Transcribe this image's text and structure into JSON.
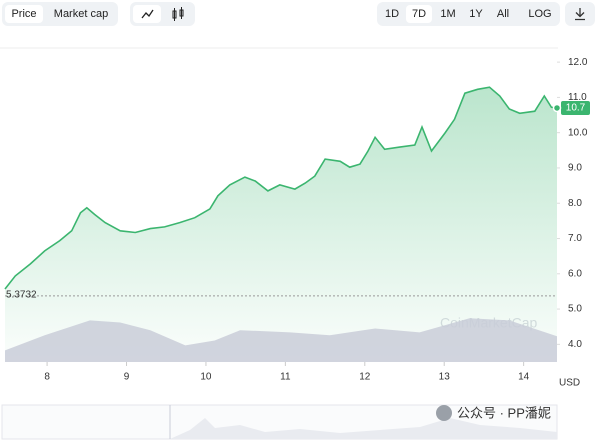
{
  "toolbar": {
    "tabs": [
      "Price",
      "Market cap"
    ],
    "ranges": [
      "1D",
      "7D",
      "1M",
      "1Y",
      "All"
    ],
    "log_label": "LOG"
  },
  "chart_data": {
    "type": "line",
    "series": [
      {
        "color": "#3bb56f",
        "x": [
          7.47,
          7.6,
          7.79,
          7.97,
          8.16,
          8.31,
          8.42,
          8.5,
          8.6,
          8.73,
          8.92,
          9.11,
          9.3,
          9.48,
          9.67,
          9.86,
          10.05,
          10.15,
          10.3,
          10.49,
          10.62,
          10.78,
          10.93,
          11.12,
          11.25,
          11.37,
          11.5,
          11.69,
          11.81,
          11.94,
          12.04,
          12.13,
          12.25,
          12.44,
          12.63,
          12.72,
          12.84,
          13.01,
          13.13,
          13.26,
          13.42,
          13.57,
          13.7,
          13.82,
          13.95,
          14.14,
          14.26,
          14.35,
          14.42
        ],
        "values": [
          5.57,
          5.94,
          6.28,
          6.65,
          6.94,
          7.22,
          7.73,
          7.87,
          7.68,
          7.45,
          7.22,
          7.17,
          7.28,
          7.33,
          7.45,
          7.59,
          7.84,
          8.21,
          8.52,
          8.74,
          8.63,
          8.35,
          8.52,
          8.4,
          8.57,
          8.77,
          9.25,
          9.19,
          9.02,
          9.11,
          9.48,
          9.87,
          9.53,
          9.59,
          9.65,
          10.16,
          9.48,
          9.99,
          10.38,
          11.12,
          11.23,
          11.29,
          11.04,
          10.67,
          10.55,
          10.61,
          11.04,
          10.72,
          10.7
        ]
      },
      {
        "color": "#c9ccd8",
        "x": [
          7.47,
          7.97,
          8.54,
          8.92,
          9.3,
          9.74,
          10.11,
          10.43,
          11.06,
          11.56,
          12.13,
          12.69,
          13.32,
          13.82,
          14.42
        ],
        "values": [
          3.83,
          4.26,
          4.68,
          4.62,
          4.4,
          3.97,
          4.11,
          4.4,
          4.34,
          4.26,
          4.45,
          4.34,
          4.74,
          4.68,
          4.23
        ]
      }
    ],
    "xlim": [
      7.47,
      14.42
    ],
    "xticks": [
      8,
      9,
      10,
      11,
      12,
      13,
      14
    ],
    "ylim": [
      3.5,
      12.4
    ],
    "yticks": [
      {
        "value": 4,
        "label": "4.0"
      },
      {
        "value": 5,
        "label": "5.0"
      },
      {
        "value": 6,
        "label": "6.0"
      },
      {
        "value": 7,
        "label": "7.0"
      },
      {
        "value": 8,
        "label": "8.0"
      },
      {
        "value": 9,
        "label": "9.0"
      },
      {
        "value": 10,
        "label": "10.0"
      },
      {
        "value": 11,
        "label": "11.0"
      },
      {
        "value": 12,
        "label": "12.0"
      }
    ],
    "reference": 5.3732,
    "last_price": 10.7,
    "y_unit": "USD",
    "brand_watermark": "CoinMarketCap",
    "watermark": "公众号 · PP潘妮"
  }
}
